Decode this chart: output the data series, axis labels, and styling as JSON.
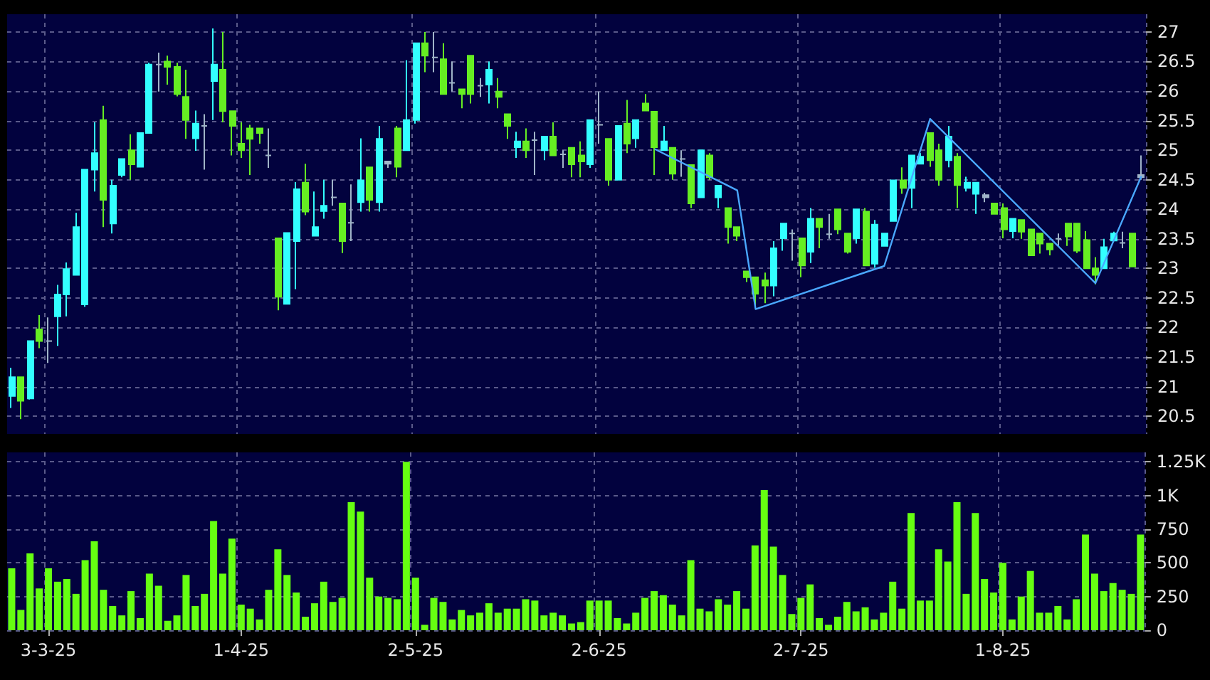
{
  "chart_data": [
    {
      "type": "candlestick",
      "tick_labels": "y",
      "grid": true,
      "categories": [
        null,
        null,
        null,
        null,
        null,
        null,
        null,
        null,
        null,
        null,
        null,
        null,
        null,
        null,
        null,
        null,
        null,
        null,
        null,
        null,
        null,
        null,
        null,
        null,
        null,
        null,
        null,
        null,
        null,
        null,
        null,
        null,
        null,
        null,
        null,
        null,
        null,
        null,
        null,
        null,
        null,
        null,
        null,
        null,
        null,
        null,
        null,
        null,
        null,
        null,
        null,
        null,
        null,
        null,
        null,
        null,
        null,
        null,
        null,
        null,
        null,
        null,
        null,
        null,
        null,
        null,
        null,
        null,
        null,
        null,
        null,
        null,
        null,
        null,
        null,
        null,
        null,
        null,
        null,
        null,
        null,
        null,
        null,
        null,
        null,
        null,
        null,
        null,
        null,
        null,
        null,
        null,
        null,
        null,
        null,
        null,
        null,
        null,
        null,
        null,
        null,
        null,
        null,
        null,
        null,
        null,
        null,
        null,
        null,
        null,
        null,
        null,
        null,
        null,
        null,
        null,
        null,
        null,
        null,
        null,
        null,
        null,
        null,
        null
      ],
      "ohlc": [
        [
          20.84,
          21.32,
          20.64,
          21.16
        ],
        [
          21.16,
          21.16,
          20.45,
          20.76
        ],
        [
          20.8,
          21.77,
          20.78,
          21.77
        ],
        [
          21.97,
          22.21,
          21.65,
          21.77
        ],
        [
          21.77,
          22.17,
          21.4,
          21.77
        ],
        [
          22.19,
          22.72,
          21.69,
          22.56
        ],
        [
          22.56,
          23.1,
          22.19,
          22.99
        ],
        [
          22.89,
          23.94,
          22.89,
          23.7
        ],
        [
          22.39,
          24.67,
          22.35,
          24.67
        ],
        [
          24.67,
          25.47,
          24.3,
          24.95
        ],
        [
          25.51,
          25.75,
          23.7,
          24.16
        ],
        [
          23.76,
          24.5,
          23.59,
          24.4
        ],
        [
          24.58,
          24.85,
          24.54,
          24.85
        ],
        [
          25,
          25.27,
          24.5,
          24.76
        ],
        [
          24.72,
          25.29,
          24.72,
          25.29
        ],
        [
          25.29,
          26.48,
          25.29,
          26.45
        ],
        [
          26.45,
          26.65,
          25.99,
          26.45
        ],
        [
          26.5,
          26.6,
          26.11,
          26.41
        ],
        [
          26.41,
          26.48,
          25.91,
          25.95
        ],
        [
          25.9,
          26.36,
          25.19,
          25.51
        ],
        [
          25.2,
          25.67,
          24.99,
          25.45
        ],
        [
          25.41,
          25.61,
          24.67,
          25.41
        ],
        [
          26.17,
          27.06,
          25.51,
          26.45
        ],
        [
          26.36,
          27,
          25.47,
          25.66
        ],
        [
          25.66,
          25.66,
          24.91,
          25.41
        ],
        [
          25.11,
          25.47,
          24.87,
          25
        ],
        [
          25.37,
          25.43,
          24.58,
          25.19
        ],
        [
          25.37,
          25.37,
          25.11,
          25.29
        ],
        [
          24.91,
          25.37,
          24.7,
          24.91
        ],
        [
          23.51,
          23.51,
          22.29,
          22.52
        ],
        [
          22.4,
          23.6,
          22.4,
          23.6
        ],
        [
          23.46,
          24.46,
          22.65,
          24.34
        ],
        [
          24.45,
          24.77,
          23.9,
          23.96
        ],
        [
          23.55,
          24.3,
          23.55,
          23.7
        ],
        [
          23.97,
          24.5,
          23.84,
          24.06
        ],
        [
          24.2,
          24.5,
          24.06,
          24.2
        ],
        [
          24.1,
          24.1,
          23.26,
          23.46
        ],
        [
          23.77,
          24.42,
          23.46,
          23.77
        ],
        [
          24.12,
          25.2,
          23.96,
          24.49
        ],
        [
          24.71,
          24.71,
          23.96,
          24.16
        ],
        [
          24.12,
          25.41,
          23.96,
          25.19
        ],
        [
          24.77,
          24.82,
          24.7,
          24.81
        ],
        [
          25.37,
          25.41,
          24.54,
          24.72
        ],
        [
          25,
          26.52,
          25,
          25.51
        ],
        [
          25.51,
          26.81,
          25.45,
          26.81
        ],
        [
          26.81,
          27,
          26.32,
          26.6
        ],
        [
          26.57,
          27,
          26.32,
          26.57
        ],
        [
          26.54,
          26.81,
          25.95,
          25.95
        ],
        [
          26.14,
          26.5,
          25.99,
          26.14
        ],
        [
          26.03,
          26.03,
          25.71,
          25.95
        ],
        [
          26.6,
          26.6,
          25.79,
          25.95
        ],
        [
          26.09,
          26.22,
          25.9,
          26.09
        ],
        [
          26.11,
          26.5,
          25.79,
          26.36
        ],
        [
          25.99,
          26.22,
          25.71,
          25.9
        ],
        [
          25.61,
          25.61,
          25.19,
          25.41
        ],
        [
          25.05,
          25.31,
          24.87,
          25.15
        ],
        [
          25.15,
          25.37,
          24.87,
          25
        ],
        [
          25.17,
          25.31,
          24.58,
          25.17
        ],
        [
          25,
          25.23,
          24.83,
          25.23
        ],
        [
          25.23,
          25.47,
          24.91,
          24.91
        ],
        [
          24.93,
          25,
          24.7,
          24.93
        ],
        [
          25.04,
          25.04,
          24.54,
          24.76
        ],
        [
          24.91,
          25.15,
          24.54,
          24.81
        ],
        [
          24.76,
          25.51,
          24.7,
          25.51
        ],
        [
          25.43,
          25.99,
          25.11,
          25.43
        ],
        [
          25.19,
          25.19,
          24.4,
          24.5
        ],
        [
          24.5,
          25.41,
          24.5,
          25.41
        ],
        [
          25.45,
          25.85,
          24.95,
          25.11
        ],
        [
          25.2,
          25.51,
          25.04,
          25.51
        ],
        [
          25.79,
          25.95,
          25.67,
          25.67
        ],
        [
          25.65,
          25.65,
          24.58,
          25.05
        ],
        [
          25,
          25.41,
          25,
          25.15
        ],
        [
          25.04,
          25.04,
          24.5,
          24.6
        ],
        [
          24.85,
          25,
          24.55,
          24.85
        ],
        [
          24.75,
          24.75,
          24.02,
          24.1
        ],
        [
          24.2,
          25,
          24.2,
          25
        ],
        [
          24.91,
          24.95,
          24.5,
          24.54
        ],
        [
          24.2,
          24.4,
          24.02,
          24.4
        ],
        [
          24.02,
          24.02,
          23.42,
          23.7
        ],
        [
          23.7,
          23.7,
          23.46,
          23.55
        ],
        [
          22.95,
          22.95,
          22.77,
          22.85
        ],
        [
          22.85,
          22.85,
          22.37,
          22.57
        ],
        [
          22.8,
          22.93,
          22.41,
          22.71
        ],
        [
          22.71,
          23.46,
          22.53,
          23.34
        ],
        [
          23.51,
          23.76,
          23.3,
          23.76
        ],
        [
          23.59,
          23.66,
          23.13,
          23.59
        ],
        [
          23.51,
          23.51,
          22.85,
          23.05
        ],
        [
          23.28,
          24.02,
          23.09,
          23.84
        ],
        [
          23.84,
          23.84,
          23.34,
          23.7
        ],
        [
          23.58,
          23.92,
          23.5,
          23.58
        ],
        [
          24,
          24,
          23.58,
          23.66
        ],
        [
          23.59,
          23.59,
          23.25,
          23.28
        ],
        [
          23.51,
          24,
          23.42,
          24
        ],
        [
          23.96,
          24.02,
          23.05,
          23.05
        ],
        [
          23.08,
          23.82,
          23.01,
          23.74
        ],
        [
          23.38,
          23.59,
          23.38,
          23.59
        ],
        [
          23.8,
          24.49,
          23.8,
          24.49
        ],
        [
          24.49,
          24.71,
          24.26,
          24.36
        ],
        [
          24.36,
          24.91,
          24.02,
          24.91
        ],
        [
          24.77,
          24.95,
          24.77,
          24.89
        ],
        [
          25.29,
          25.29,
          24.72,
          24.83
        ],
        [
          25,
          25.11,
          24.4,
          24.5
        ],
        [
          24.83,
          25.41,
          24.71,
          25.23
        ],
        [
          24.89,
          24.95,
          24.02,
          24.41
        ],
        [
          24.36,
          24.55,
          24.3,
          24.45
        ],
        [
          24.26,
          24.45,
          23.92,
          24.45
        ],
        [
          24.2,
          24.28,
          24.12,
          24.24
        ],
        [
          24.1,
          24.1,
          23.92,
          23.92
        ],
        [
          24.02,
          24.1,
          23.51,
          23.66
        ],
        [
          23.63,
          23.84,
          23.51,
          23.84
        ],
        [
          23.82,
          23.82,
          23.5,
          23.62
        ],
        [
          23.66,
          23.66,
          23.22,
          23.22
        ],
        [
          23.59,
          23.59,
          23.25,
          23.42
        ],
        [
          23.42,
          23.42,
          23.22,
          23.32
        ],
        [
          23.5,
          23.59,
          23.38,
          23.5
        ],
        [
          23.76,
          23.76,
          23.38,
          23.54
        ],
        [
          23.76,
          23.76,
          23.26,
          23.3
        ],
        [
          23.48,
          23.63,
          23,
          23
        ],
        [
          23,
          23.19,
          22.73,
          22.89
        ],
        [
          23,
          23.5,
          23,
          23.36
        ],
        [
          23.47,
          23.62,
          23.47,
          23.59
        ],
        [
          23.43,
          23.62,
          23.34,
          23.43
        ],
        [
          23.59,
          23.59,
          23.03,
          23.03
        ],
        [
          24.54,
          24.91,
          24.5,
          24.58
        ]
      ],
      "colors": [
        "#33ffff",
        "#66ee22",
        "#33ffff",
        "#66ee22",
        "#a0b4c8",
        "#33ffff",
        "#33ffff",
        "#33ffff",
        "#33ffff",
        "#33ffff",
        "#66ee22",
        "#33ffff",
        "#33ffff",
        "#66ee22",
        "#33ffff",
        "#33ffff",
        "#a0b4c8",
        "#66ee22",
        "#66ee22",
        "#66ee22",
        "#33ffff",
        "#a0b4c8",
        "#33ffff",
        "#66ee22",
        "#66ee22",
        "#66ee22",
        "#66ee22",
        "#66ee22",
        "#a0b4c8",
        "#66ee22",
        "#33ffff",
        "#33ffff",
        "#66ee22",
        "#33ffff",
        "#33ffff",
        "#a0b4c8",
        "#66ee22",
        "#a0b4c8",
        "#33ffff",
        "#66ee22",
        "#33ffff",
        "#a0b4c8",
        "#66ee22",
        "#33ffff",
        "#33ffff",
        "#66ee22",
        "#a0b4c8",
        "#66ee22",
        "#a0b4c8",
        "#66ee22",
        "#66ee22",
        "#a0b4c8",
        "#33ffff",
        "#66ee22",
        "#66ee22",
        "#33ffff",
        "#66ee22",
        "#a0b4c8",
        "#33ffff",
        "#66ee22",
        "#a0b4c8",
        "#66ee22",
        "#66ee22",
        "#33ffff",
        "#a0b4c8",
        "#66ee22",
        "#33ffff",
        "#66ee22",
        "#33ffff",
        "#66ee22",
        "#66ee22",
        "#33ffff",
        "#66ee22",
        "#a0b4c8",
        "#66ee22",
        "#33ffff",
        "#66ee22",
        "#33ffff",
        "#66ee22",
        "#66ee22",
        "#66ee22",
        "#66ee22",
        "#66ee22",
        "#33ffff",
        "#33ffff",
        "#a0b4c8",
        "#66ee22",
        "#33ffff",
        "#66ee22",
        "#a0b4c8",
        "#66ee22",
        "#66ee22",
        "#33ffff",
        "#66ee22",
        "#33ffff",
        "#33ffff",
        "#33ffff",
        "#66ee22",
        "#33ffff",
        "#33ffff",
        "#66ee22",
        "#66ee22",
        "#33ffff",
        "#66ee22",
        "#33ffff",
        "#33ffff",
        "#a0b4c8",
        "#66ee22",
        "#66ee22",
        "#33ffff",
        "#66ee22",
        "#66ee22",
        "#66ee22",
        "#66ee22",
        "#a0b4c8",
        "#66ee22",
        "#66ee22",
        "#66ee22",
        "#66ee22",
        "#33ffff",
        "#33ffff",
        "#a0b4c8",
        "#66ee22",
        "#a0b4c8"
      ],
      "series": [
        {
          "type": "line",
          "color": "#4aa8ff",
          "values": [
            null,
            null,
            null,
            null,
            null,
            null,
            null,
            null,
            null,
            null,
            null,
            null,
            null,
            null,
            null,
            null,
            null,
            null,
            null,
            null,
            null,
            null,
            null,
            null,
            null,
            null,
            null,
            null,
            null,
            null,
            null,
            null,
            null,
            null,
            null,
            null,
            null,
            null,
            null,
            null,
            null,
            null,
            null,
            null,
            null,
            null,
            null,
            null,
            null,
            null,
            null,
            null,
            null,
            null,
            null,
            null,
            null,
            null,
            null,
            null,
            null,
            null,
            null,
            null,
            null,
            null,
            null,
            null,
            null,
            null,
            25.02,
            null,
            null,
            null,
            null,
            null,
            null,
            null,
            null,
            24.32,
            null,
            22.31,
            null,
            null,
            null,
            null,
            null,
            null,
            null,
            null,
            null,
            null,
            null,
            null,
            null,
            23.04,
            null,
            null,
            null,
            null,
            25.53,
            null,
            null,
            null,
            null,
            null,
            null,
            null,
            null,
            null,
            null,
            null,
            null,
            null,
            null,
            null,
            null,
            null,
            22.75,
            null,
            null,
            null,
            null,
            24.56
          ]
        }
      ],
      "ylim": [
        20.2,
        27.3
      ],
      "yticks": [
        20.5,
        21,
        21.5,
        22,
        22.5,
        23,
        23.5,
        24,
        24.5,
        25,
        25.5,
        26,
        26.5,
        27
      ]
    },
    {
      "type": "bar",
      "grid": true,
      "color": "#66ff11",
      "categories": [
        null,
        null,
        null,
        null,
        "3-3-25",
        null,
        null,
        null,
        null,
        null,
        null,
        null,
        null,
        null,
        null,
        null,
        null,
        null,
        null,
        null,
        null,
        null,
        null,
        null,
        null,
        "1-4-25",
        null,
        null,
        null,
        null,
        null,
        null,
        null,
        null,
        null,
        null,
        null,
        null,
        null,
        null,
        null,
        null,
        null,
        null,
        "2-5-25",
        null,
        null,
        null,
        null,
        null,
        null,
        null,
        null,
        null,
        null,
        null,
        null,
        null,
        null,
        null,
        null,
        null,
        null,
        null,
        "2-6-25",
        null,
        null,
        null,
        null,
        null,
        null,
        null,
        null,
        null,
        null,
        null,
        null,
        null,
        null,
        null,
        null,
        null,
        null,
        null,
        null,
        null,
        "2-7-25",
        null,
        null,
        null,
        null,
        null,
        null,
        null,
        null,
        null,
        null,
        null,
        null,
        null,
        null,
        null,
        null,
        null,
        null,
        null,
        null,
        null,
        "1-8-25",
        null,
        null,
        null,
        null,
        null,
        null,
        null,
        null,
        null,
        null,
        null,
        null,
        null,
        null,
        null
      ],
      "values": [
        460,
        150,
        570,
        310,
        460,
        360,
        380,
        270,
        520,
        660,
        300,
        180,
        110,
        290,
        90,
        420,
        330,
        70,
        110,
        410,
        180,
        270,
        810,
        420,
        680,
        190,
        160,
        80,
        300,
        600,
        410,
        280,
        100,
        200,
        360,
        210,
        240,
        950,
        880,
        390,
        250,
        240,
        230,
        1250,
        390,
        40,
        240,
        210,
        80,
        150,
        110,
        130,
        200,
        130,
        160,
        160,
        230,
        220,
        110,
        130,
        110,
        50,
        60,
        220,
        220,
        220,
        90,
        50,
        130,
        240,
        290,
        260,
        190,
        110,
        520,
        160,
        140,
        230,
        190,
        290,
        160,
        630,
        1040,
        620,
        410,
        120,
        240,
        340,
        90,
        40,
        100,
        210,
        140,
        170,
        80,
        130,
        360,
        160,
        870,
        220,
        220,
        600,
        510,
        950,
        270,
        870,
        380,
        280,
        500,
        80,
        250,
        440,
        130,
        130,
        180,
        80,
        230,
        710,
        420,
        290,
        350,
        300,
        270,
        710
      ],
      "ylim": [
        0,
        1320
      ],
      "yticks": [
        0,
        250,
        500,
        750,
        {
          "value": 1000,
          "label": "1K"
        },
        {
          "value": 1250,
          "label": "1.25K"
        }
      ]
    }
  ]
}
